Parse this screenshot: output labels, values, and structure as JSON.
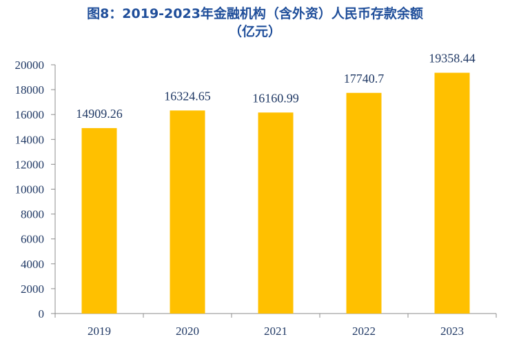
{
  "chart_data": {
    "type": "bar",
    "title_line1": "图8：2019-2023年金融机构（含外资）人民币存款余额",
    "title_line2": "（亿元）",
    "categories": [
      "2019",
      "2020",
      "2021",
      "2022",
      "2023"
    ],
    "values": [
      14909.26,
      16324.65,
      16160.99,
      17740.7,
      19358.44
    ],
    "value_labels": [
      "14909.26",
      "16324.65",
      "16160.99",
      "17740.7",
      "19358.44"
    ],
    "ylim": [
      0,
      20000
    ],
    "yticks": [
      "0",
      "2000",
      "4000",
      "6000",
      "8000",
      "10000",
      "12000",
      "14000",
      "16000",
      "18000",
      "20000"
    ],
    "grid": false,
    "bar_color": "#FFC000",
    "axis_color": "#8c8c8c",
    "text_color": "#1f3864"
  }
}
